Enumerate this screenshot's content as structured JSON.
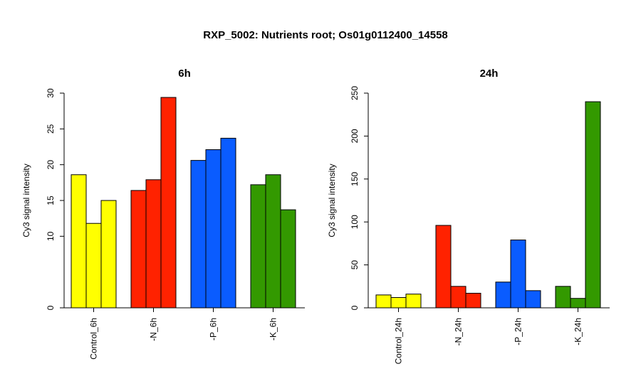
{
  "chart_title": "RXP_5002: Nutrients root; Os01g0112400_14558",
  "chart_data": [
    {
      "type": "bar",
      "title": "6h",
      "ylabel": "Cy3 signal intensity",
      "ylim": [
        0,
        30
      ],
      "yticks": [
        0,
        10,
        15,
        20,
        25,
        30
      ],
      "ytick_labels": [
        "0",
        "10",
        "15",
        "20",
        "25",
        "30"
      ],
      "categories": [
        "Control_6h",
        "-N_6h",
        "-P_6h",
        "-K_6h"
      ],
      "colors": [
        "#ffff00",
        "#ff2200",
        "#0a5cff",
        "#339900"
      ],
      "groups": [
        [
          18.6,
          11.8,
          15.0
        ],
        [
          16.4,
          17.9,
          29.4
        ],
        [
          20.6,
          22.1,
          23.7
        ],
        [
          17.2,
          18.6,
          13.7
        ]
      ]
    },
    {
      "type": "bar",
      "title": "24h",
      "ylabel": "Cy3 signal intensity",
      "ylim": [
        0,
        250
      ],
      "yticks": [
        0,
        50,
        100,
        150,
        200,
        250
      ],
      "ytick_labels": [
        "0",
        "50",
        "100",
        "150",
        "200",
        "250"
      ],
      "categories": [
        "Control_24h",
        "-N_24h",
        "-P_24h",
        "-K_24h"
      ],
      "colors": [
        "#ffff00",
        "#ff2200",
        "#0a5cff",
        "#339900"
      ],
      "groups": [
        [
          15,
          12,
          16
        ],
        [
          96,
          25,
          17
        ],
        [
          30,
          79,
          20
        ],
        [
          25,
          11,
          240
        ]
      ]
    }
  ]
}
